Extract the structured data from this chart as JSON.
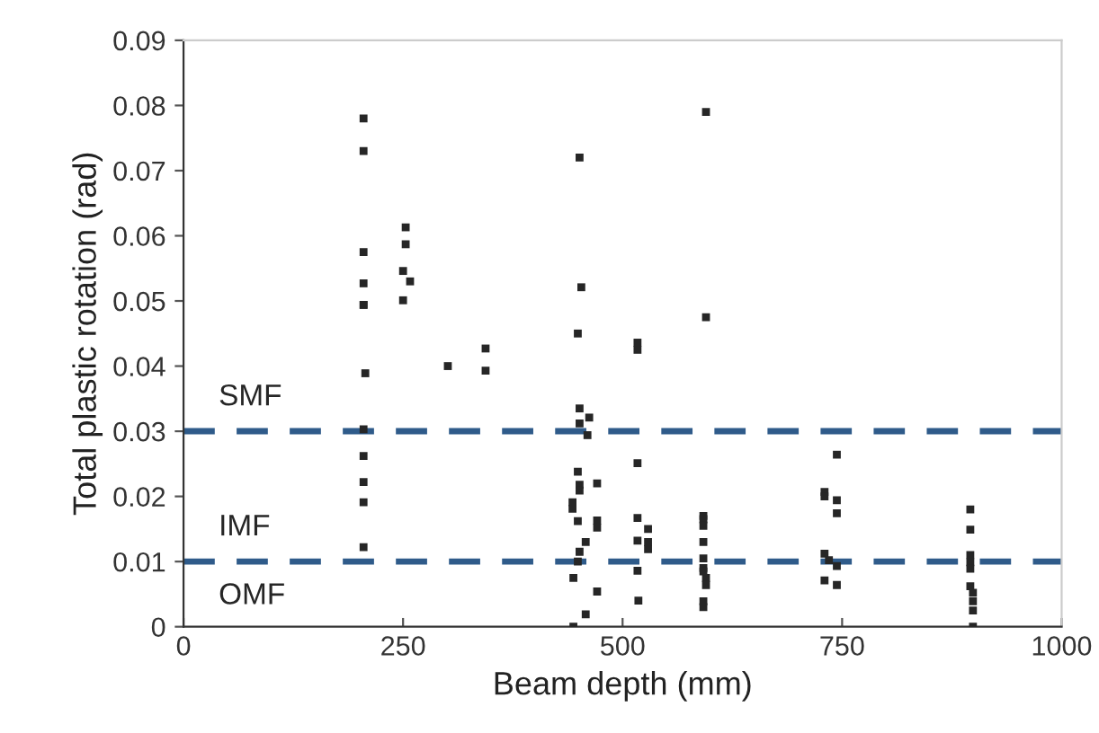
{
  "chart_data": {
    "type": "scatter",
    "xlabel": "Beam depth (mm)",
    "ylabel": "Total plastic rotation (rad)",
    "xlim": [
      0,
      1000
    ],
    "xticks": [
      0,
      250,
      500,
      750,
      1000
    ],
    "ylim": [
      0,
      0.09
    ],
    "yticks": [
      0,
      0.01,
      0.02,
      0.03,
      0.04,
      0.05,
      0.06,
      0.07,
      0.08,
      0.09
    ],
    "grid": false,
    "legend": false,
    "marker": "square",
    "series": [
      {
        "color": "#262626",
        "x": [
          205,
          205,
          205,
          205,
          205,
          205,
          207,
          205,
          205,
          205,
          205,
          205,
          253,
          253,
          250,
          258,
          250,
          301,
          344,
          344,
          451,
          453,
          449,
          451,
          462,
          451,
          460,
          449,
          451,
          451,
          471,
          443,
          443,
          449,
          471,
          471,
          458,
          451,
          449,
          444,
          471,
          458,
          444,
          517,
          517,
          517,
          517,
          517,
          529,
          529,
          529,
          517,
          518,
          595,
          595,
          592,
          592,
          592,
          592,
          592,
          592,
          592,
          595,
          595,
          592,
          592,
          730,
          730,
          744,
          744,
          744,
          730,
          735,
          744,
          730,
          744,
          896,
          896,
          896,
          896,
          896,
          896,
          899,
          899,
          899,
          899
        ],
        "values": [
          0.078,
          0.073,
          0.0575,
          0.0527,
          0.0494,
          0.0494,
          0.0389,
          0.0303,
          0.0262,
          0.0222,
          0.0191,
          0.0122,
          0.0613,
          0.0587,
          0.0546,
          0.053,
          0.0501,
          0.04,
          0.0427,
          0.0393,
          0.072,
          0.0521,
          0.045,
          0.0335,
          0.0321,
          0.0312,
          0.0294,
          0.0238,
          0.0218,
          0.0209,
          0.022,
          0.0191,
          0.0181,
          0.0162,
          0.0163,
          0.0152,
          0.013,
          0.0115,
          0.01,
          0.0075,
          0.0054,
          0.0019,
          0,
          0.0436,
          0.0425,
          0.0251,
          0.0167,
          0.0132,
          0.015,
          0.013,
          0.0119,
          0.0086,
          0.004,
          0.079,
          0.0475,
          0.017,
          0.0165,
          0.0155,
          0.013,
          0.0105,
          0.009,
          0.0085,
          0.0075,
          0.0064,
          0.0039,
          0.003,
          0.0207,
          0.02,
          0.0264,
          0.0194,
          0.0174,
          0.0112,
          0.0102,
          0.0093,
          0.0071,
          0.0064,
          0.018,
          0.0149,
          0.011,
          0.0099,
          0.0089,
          0.0062,
          0.0052,
          0.0039,
          0.0025,
          0
        ]
      }
    ],
    "ref_lines": [
      {
        "axis": "y",
        "value": 0.03,
        "color": "#2f5b8a",
        "line_style": "dashed"
      },
      {
        "axis": "y",
        "value": 0.01,
        "color": "#2f5b8a",
        "line_style": "dashed"
      }
    ],
    "annotations": [
      "SMF",
      "IMF",
      "OMF"
    ]
  }
}
